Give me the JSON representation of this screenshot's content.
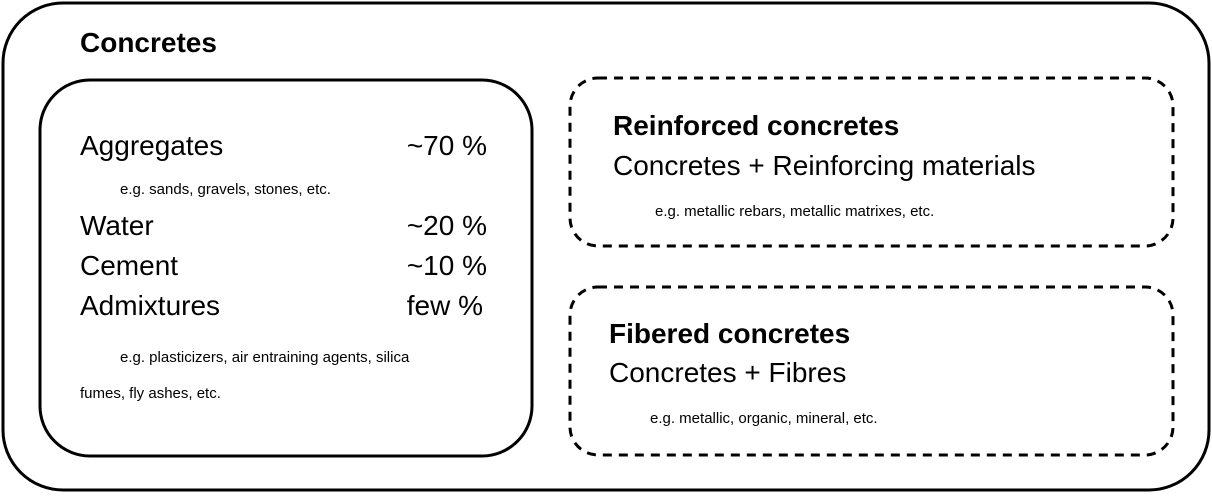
{
  "title": "Concretes",
  "components": {
    "items": [
      {
        "name": "Aggregates",
        "amount": "~70 %",
        "note": "e.g. sands, gravels, stones, etc."
      },
      {
        "name": "Water",
        "amount": "~20 %"
      },
      {
        "name": "Cement",
        "amount": "~10 %"
      },
      {
        "name": "Admixtures",
        "amount": "few %"
      }
    ],
    "note_line1": "e.g. plasticizers, air entraining agents, silica",
    "note_line2": "fumes, fly ashes, etc."
  },
  "variants": [
    {
      "title": "Reinforced concretes",
      "formula": "Concretes + Reinforcing materials",
      "note": "e.g. metallic rebars, metallic matrixes, etc."
    },
    {
      "title": "Fibered concretes",
      "formula": "Concretes + Fibres",
      "note": "e.g. metallic, organic, mineral, etc."
    }
  ]
}
